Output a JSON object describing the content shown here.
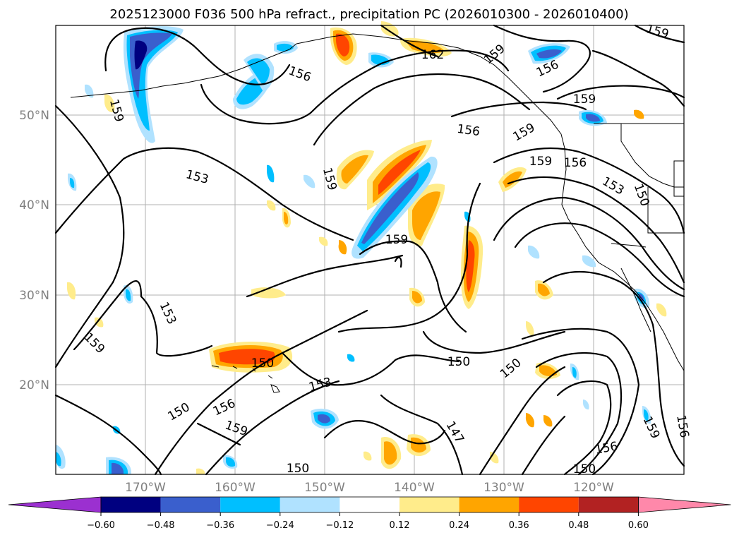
{
  "title": "2025123000 F036 500 hPa refract., precipitation PC (2026010300 - 2026010400)",
  "map": {
    "lat_labels": [
      "50°N",
      "40°N",
      "30°N",
      "20°N"
    ],
    "lon_labels": [
      "170°W",
      "160°W",
      "150°W",
      "140°W",
      "130°W",
      "120°W"
    ],
    "gridlines": true
  },
  "contour_labels": [
    "162",
    "159",
    "159",
    "159",
    "159",
    "159",
    "159",
    "159",
    "159",
    "159",
    "159",
    "159",
    "156",
    "156",
    "156",
    "156",
    "156",
    "156",
    "153",
    "153",
    "153",
    "153",
    "150",
    "150",
    "150",
    "150",
    "150",
    "150",
    "150",
    "147",
    "156"
  ],
  "colorbar": {
    "ticks": [
      "−0.60",
      "−0.48",
      "−0.36",
      "−0.24",
      "−0.12",
      "0.12",
      "0.24",
      "0.36",
      "0.48",
      "0.60"
    ],
    "colors": [
      "#9b30d0",
      "#000080",
      "#3a5fcd",
      "#00bfff",
      "#b0e2ff",
      "#ffffff",
      "#ffec8b",
      "#ffa500",
      "#ff4500",
      "#b22222",
      "#ff88aa"
    ]
  }
}
